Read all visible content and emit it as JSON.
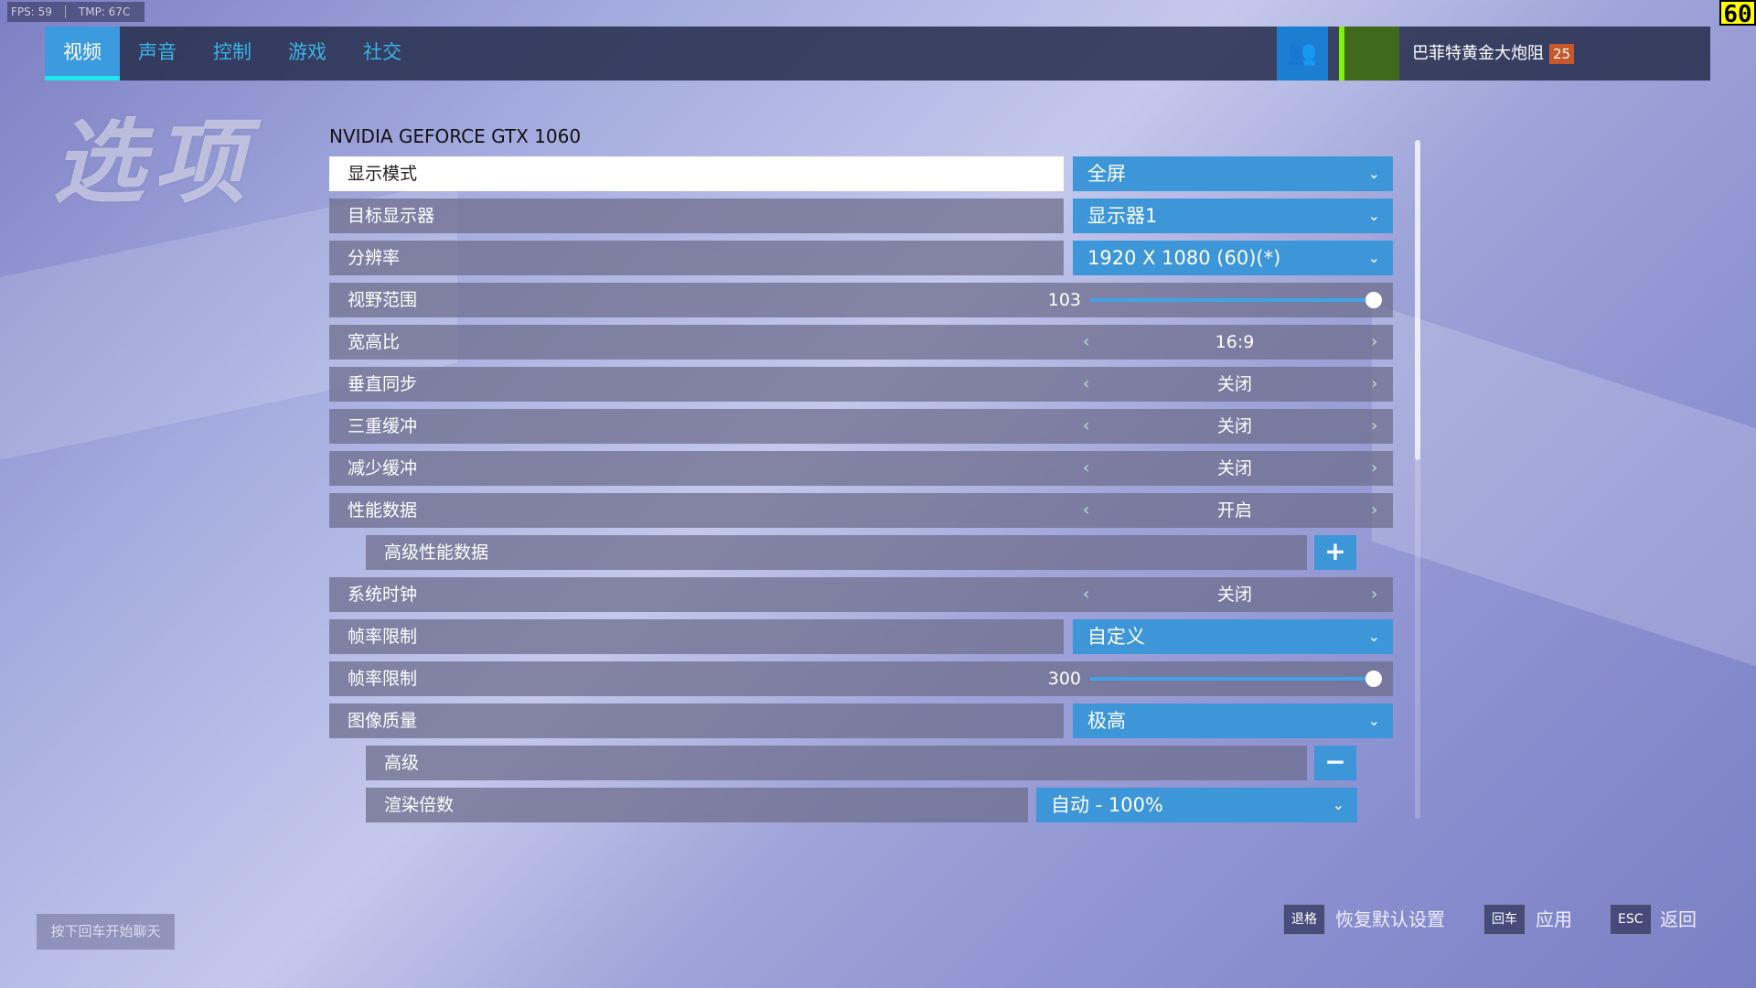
{
  "hud": {
    "fps_label": "FPS: 59",
    "tmp_label": "TMP: 67C",
    "fps_counter": "60"
  },
  "nav": {
    "tabs": [
      {
        "label": "视频",
        "active": true
      },
      {
        "label": "声音"
      },
      {
        "label": "控制"
      },
      {
        "label": "游戏"
      },
      {
        "label": "社交"
      }
    ]
  },
  "profile": {
    "name": "巴菲特黄金大炮阻",
    "level": "25",
    "social_icon": "group-add-icon"
  },
  "page_title": "选项",
  "gpu_name": "NVIDIA GEFORCE GTX 1060",
  "settings": [
    {
      "label": "显示模式",
      "type": "dropdown",
      "value": "全屏"
    },
    {
      "label": "目标显示器",
      "type": "dropdown",
      "value": "显示器1"
    },
    {
      "label": "分辨率",
      "type": "dropdown",
      "value": "1920 X 1080 (60)(*)"
    },
    {
      "label": "视野范围",
      "type": "slider",
      "value": "103",
      "fraction": 1.0
    },
    {
      "label": "宽高比",
      "type": "toggle",
      "value": "16:9"
    },
    {
      "label": "垂直同步",
      "type": "toggle",
      "value": "关闭"
    },
    {
      "label": "三重缓冲",
      "type": "toggle",
      "value": "关闭"
    },
    {
      "label": "减少缓冲",
      "type": "toggle",
      "value": "关闭"
    },
    {
      "label": "性能数据",
      "type": "toggle",
      "value": "开启"
    },
    {
      "label": "高级性能数据",
      "type": "expand",
      "value": "+"
    },
    {
      "label": "系统时钟",
      "type": "toggle",
      "value": "关闭"
    },
    {
      "label": "帧率限制",
      "type": "dropdown",
      "value": "自定义"
    },
    {
      "label": "帧率限制",
      "type": "slider",
      "value": "300",
      "fraction": 1.0
    },
    {
      "label": "图像质量",
      "type": "dropdown",
      "value": "极高"
    },
    {
      "label": "高级",
      "type": "expand",
      "value": "−"
    },
    {
      "label": "渲染倍数",
      "type": "subdropdown",
      "value": "自动 - 100%"
    }
  ],
  "footer": {
    "chat_hint": "按下回车开始聊天",
    "actions": [
      {
        "key": "退格",
        "label": "恢复默认设置"
      },
      {
        "key": "回车",
        "label": "应用"
      },
      {
        "key": "ESC",
        "label": "返回"
      }
    ]
  },
  "colors": {
    "accent": "#3d96d8",
    "active_underline": "#1ee6f0",
    "level_badge": "#c5582c"
  }
}
